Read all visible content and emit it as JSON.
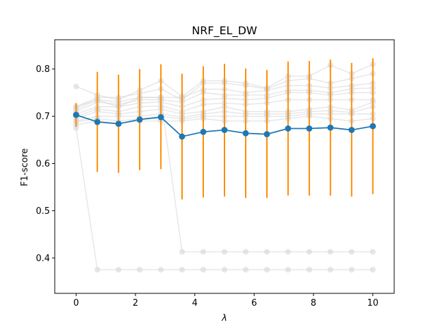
{
  "chart_data": {
    "type": "line",
    "title": "NRF_EL_DW",
    "xlabel": "λ",
    "ylabel": "F1-score",
    "xlim": [
      -0.72,
      10.72
    ],
    "ylim": [
      0.325,
      0.862
    ],
    "x_ticks": [
      0,
      2,
      4,
      6,
      8,
      10
    ],
    "y_ticks": [
      0.4,
      0.5,
      0.6,
      0.7,
      0.8
    ],
    "x_tick_labels": [
      "0",
      "2",
      "4",
      "6",
      "8",
      "10"
    ],
    "y_tick_labels": [
      "0.4",
      "0.5",
      "0.6",
      "0.7",
      "0.8"
    ],
    "grid": false,
    "x": [
      0,
      0.714,
      1.429,
      2.143,
      2.857,
      3.571,
      4.286,
      5.0,
      5.714,
      6.429,
      7.143,
      7.857,
      8.571,
      9.286,
      10.0
    ],
    "background_runs": [
      [
        0.763,
        0.745,
        0.735,
        0.755,
        0.775,
        0.742,
        0.775,
        0.775,
        0.77,
        0.76,
        0.785,
        0.785,
        0.808,
        0.79,
        0.81
      ],
      [
        0.72,
        0.74,
        0.74,
        0.748,
        0.758,
        0.735,
        0.77,
        0.77,
        0.765,
        0.758,
        0.775,
        0.78,
        0.77,
        0.78,
        0.79
      ],
      [
        0.715,
        0.735,
        0.73,
        0.74,
        0.74,
        0.74,
        0.757,
        0.757,
        0.75,
        0.755,
        0.765,
        0.765,
        0.76,
        0.765,
        0.77
      ],
      [
        0.71,
        0.73,
        0.725,
        0.735,
        0.735,
        0.73,
        0.75,
        0.745,
        0.745,
        0.745,
        0.755,
        0.755,
        0.75,
        0.758,
        0.76
      ],
      [
        0.705,
        0.72,
        0.72,
        0.728,
        0.73,
        0.72,
        0.735,
        0.738,
        0.735,
        0.738,
        0.75,
        0.75,
        0.745,
        0.75,
        0.75
      ],
      [
        0.7,
        0.715,
        0.71,
        0.72,
        0.722,
        0.71,
        0.725,
        0.728,
        0.725,
        0.728,
        0.735,
        0.735,
        0.735,
        0.735,
        0.735
      ],
      [
        0.695,
        0.71,
        0.705,
        0.71,
        0.715,
        0.705,
        0.71,
        0.72,
        0.71,
        0.71,
        0.71,
        0.715,
        0.72,
        0.713,
        0.73
      ],
      [
        0.69,
        0.7,
        0.7,
        0.7,
        0.705,
        0.698,
        0.705,
        0.71,
        0.705,
        0.705,
        0.705,
        0.71,
        0.712,
        0.708,
        0.72
      ],
      [
        0.688,
        0.695,
        0.69,
        0.695,
        0.7,
        0.694,
        0.7,
        0.7,
        0.7,
        0.7,
        0.7,
        0.705,
        0.705,
        0.705,
        0.705
      ],
      [
        0.682,
        0.69,
        0.685,
        0.69,
        0.69,
        0.69,
        0.695,
        0.69,
        0.69,
        0.69,
        0.695,
        0.7,
        0.695,
        0.69,
        0.695
      ],
      [
        0.675,
        0.375,
        0.375,
        0.375,
        0.375,
        0.375,
        0.375,
        0.375,
        0.375,
        0.375,
        0.375,
        0.375,
        0.375,
        0.375,
        0.375
      ],
      [
        0.72,
        0.735,
        0.72,
        0.74,
        0.74,
        0.413,
        0.413,
        0.413,
        0.413,
        0.413,
        0.413,
        0.413,
        0.413,
        0.413,
        0.413
      ]
    ],
    "mean": {
      "values": [
        0.703,
        0.688,
        0.684,
        0.693,
        0.698,
        0.657,
        0.667,
        0.671,
        0.664,
        0.662,
        0.674,
        0.674,
        0.676,
        0.671,
        0.679
      ],
      "color": "#1f77b4"
    },
    "error": {
      "lower": [
        0.678,
        0.582,
        0.58,
        0.586,
        0.588,
        0.524,
        0.528,
        0.53,
        0.527,
        0.527,
        0.532,
        0.532,
        0.532,
        0.53,
        0.535
      ],
      "upper": [
        0.728,
        0.794,
        0.788,
        0.8,
        0.81,
        0.79,
        0.806,
        0.811,
        0.801,
        0.798,
        0.816,
        0.817,
        0.82,
        0.813,
        0.823
      ],
      "color": "#ff8c00"
    },
    "background_color": "#d3d3d3"
  }
}
